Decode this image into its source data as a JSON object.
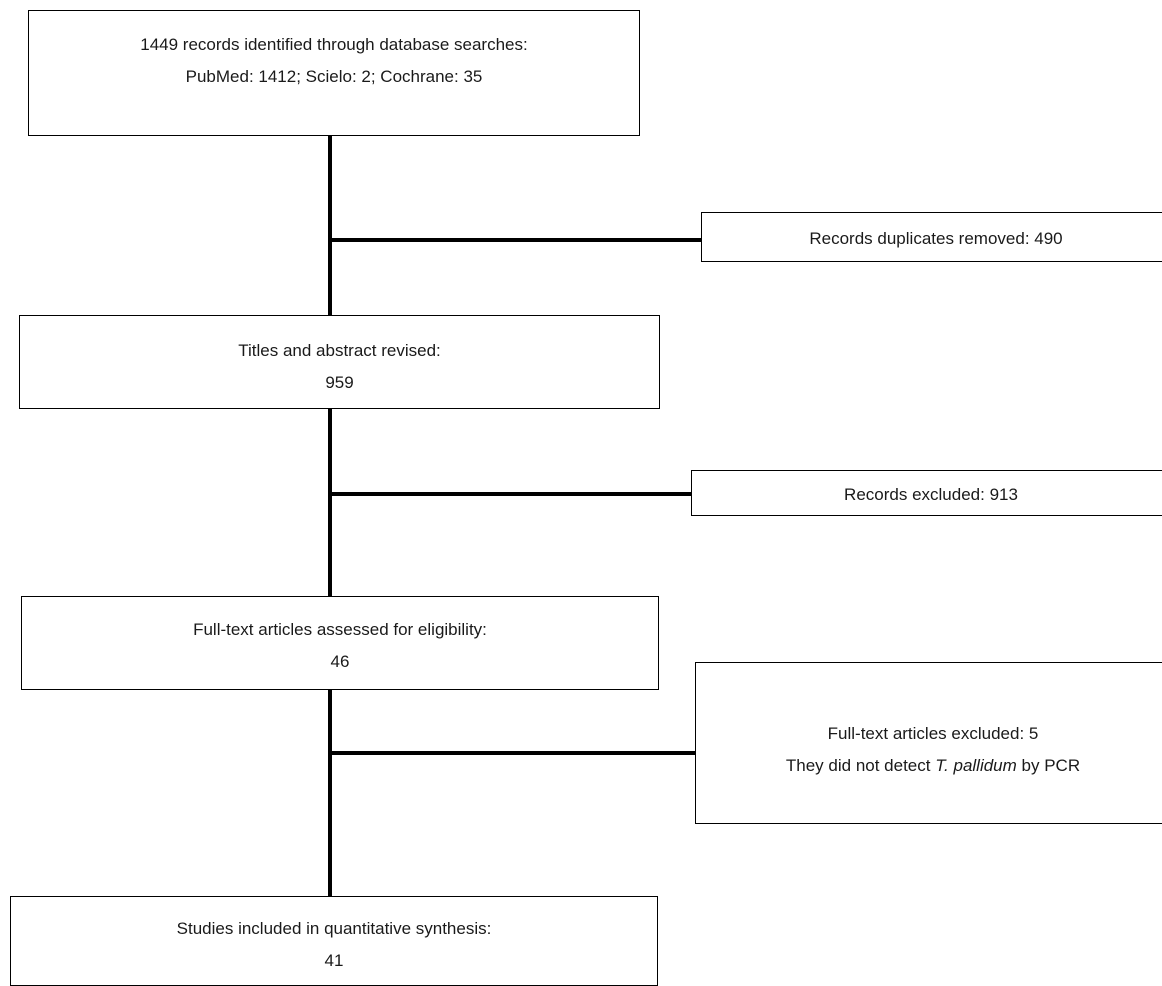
{
  "flowchart": {
    "records_identified": {
      "line1": "1449 records identified through database searches:",
      "line2": "PubMed: 1412; Scielo: 2; Cochrane: 35"
    },
    "duplicates_removed": {
      "line1": "Records duplicates removed: 490"
    },
    "titles_revised": {
      "line1": "Titles and abstract revised:",
      "line2": "959"
    },
    "records_excluded": {
      "line1": "Records excluded: 913"
    },
    "fulltext_assessed": {
      "line1": "Full-text articles assessed for eligibility:",
      "line2": "46"
    },
    "fulltext_excluded": {
      "line1": "Full-text articles excluded: 5",
      "line2_prefix": "They did not detect ",
      "line2_italic": "T. pallidum",
      "line2_suffix": " by PCR"
    },
    "studies_included": {
      "line1": "Studies included in quantitative synthesis:",
      "line2": "41"
    }
  },
  "colors": {
    "line": "#000000",
    "box_border": "#000000",
    "background": "#ffffff",
    "text": "#1a1a1a"
  }
}
